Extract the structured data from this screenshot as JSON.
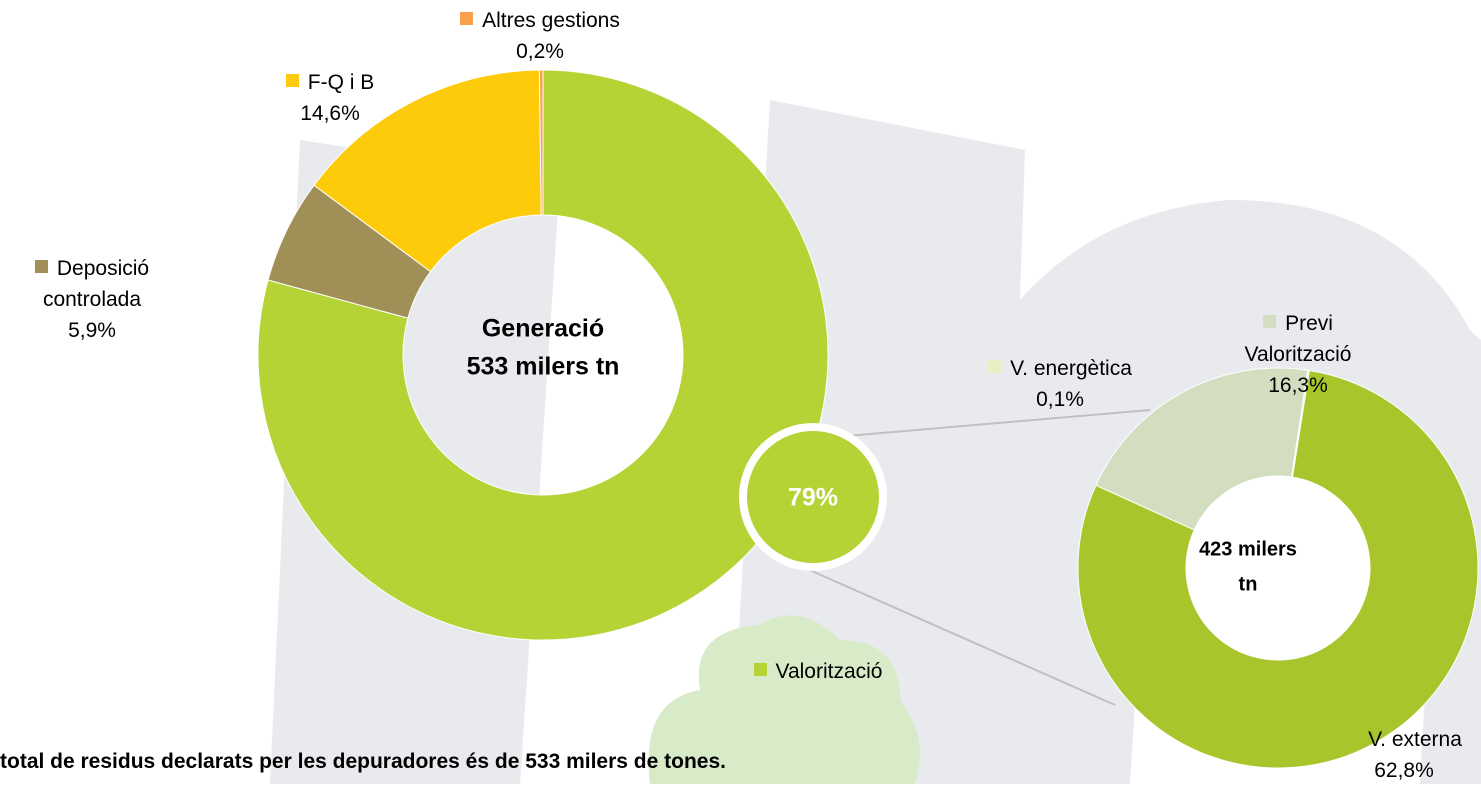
{
  "chart_data": [
    {
      "type": "donut",
      "center_label": [
        "Generació",
        "533 milers tn"
      ],
      "categories": [
        "Valorització",
        "Deposició controlada",
        "F-Q i B",
        "Altres gestions"
      ],
      "values": [
        79,
        5.9,
        14.6,
        0.2
      ],
      "value_labels": [
        "79%",
        "5,9%",
        "14,6%",
        "0,2%"
      ],
      "colors": [
        "#b5d334",
        "#a08f57",
        "#fdcb0a",
        "#f9a04c"
      ]
    },
    {
      "type": "donut",
      "center_label": [
        "423 milers",
        "tn"
      ],
      "categories": [
        "V. externa",
        "Previ Valorització",
        "V. energètica"
      ],
      "values": [
        62.8,
        16.3,
        0.1
      ],
      "value_labels": [
        "62,8%",
        "16,3%",
        "0,1%"
      ],
      "colors": [
        "#a8c62c",
        "#d3ddc0",
        "#e8efc4"
      ]
    }
  ],
  "footnote": "total de residus declarats per les depuradores és de 533 milers de tones."
}
